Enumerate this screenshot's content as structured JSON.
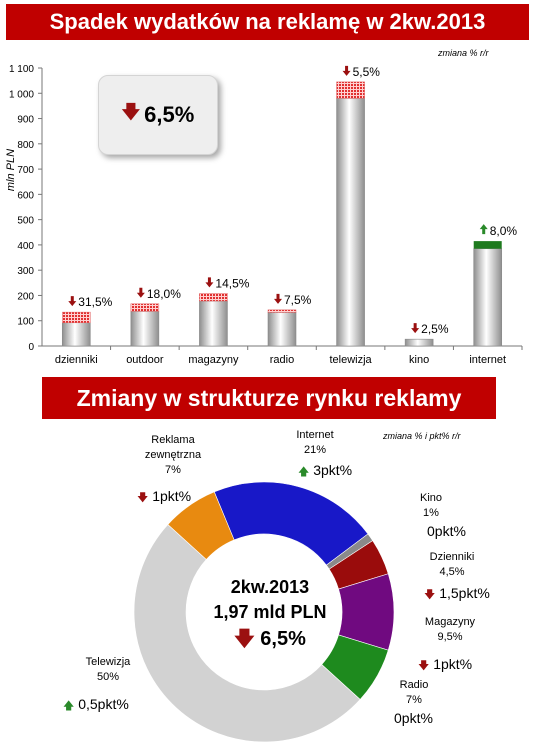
{
  "chart_data": [
    {
      "type": "bar",
      "title": "Spadek wydatków na reklamę w 2kw.2013",
      "ylabel": "mln PLN",
      "note": "zmiana % r/r",
      "ylim": [
        0,
        1100
      ],
      "yticks": [
        "0",
        "100",
        "200",
        "300",
        "400",
        "500",
        "600",
        "700",
        "800",
        "900",
        "1 000",
        "1 100"
      ],
      "grid": false,
      "categories": [
        "dzienniki",
        "outdoor",
        "magazyny",
        "radio",
        "telewizja",
        "kino",
        "internet"
      ],
      "values": [
        92,
        137,
        178,
        133,
        980,
        27,
        385
      ],
      "change_segment": [
        {
          "value": 42,
          "direction": "down"
        },
        {
          "value": 30,
          "direction": "down"
        },
        {
          "value": 30,
          "direction": "down"
        },
        {
          "value": 10,
          "direction": "down"
        },
        {
          "value": 65,
          "direction": "down"
        },
        {
          "value": 0,
          "direction": "down"
        },
        {
          "value": 30,
          "direction": "up"
        }
      ],
      "change_labels": [
        "31,5%",
        "18,0%",
        "14,5%",
        "7,5%",
        "5,5%",
        "2,5%",
        "8,0%"
      ],
      "change_directions": [
        "down",
        "down",
        "down",
        "down",
        "down",
        "down",
        "up"
      ],
      "callout": "6,5%",
      "callout_direction": "down",
      "colors": {
        "bar": "#c8c8c8",
        "decline": "#e03030",
        "growth": "#1e7a1e"
      }
    },
    {
      "type": "pie",
      "title": "Zmiany w strukturze rynku reklamy",
      "note": "zmiana % i pkt% r/r",
      "center": {
        "period": "2kw.2013",
        "total": "1,97 mld PLN",
        "change": "6,5%"
      },
      "slices": [
        {
          "name": "Internet",
          "share": 21,
          "share_label": "21%",
          "change": "3pkt%",
          "direction": "up",
          "color": "#1818c8"
        },
        {
          "name": "Kino",
          "share": 1,
          "share_label": "1%",
          "change": "0pkt%",
          "direction": "none",
          "color": "#8a8a8a"
        },
        {
          "name": "Dzienniki",
          "share": 4.5,
          "share_label": "4,5%",
          "change": "1,5pkt%",
          "direction": "down",
          "color": "#9a0c0c"
        },
        {
          "name": "Magazyny",
          "share": 9.5,
          "share_label": "9,5%",
          "change": "1pkt%",
          "direction": "down",
          "color": "#700a80"
        },
        {
          "name": "Radio",
          "share": 7,
          "share_label": "7%",
          "change": "0pkt%",
          "direction": "none",
          "color": "#1e8a1e"
        },
        {
          "name": "Telewizja",
          "share": 50,
          "share_label": "50%",
          "change": "0,5pkt%",
          "direction": "up",
          "color": "#d2d2d2"
        },
        {
          "name": "Reklama zewnętrzna",
          "share": 7,
          "share_label": "7%",
          "change": "1pkt%",
          "direction": "down",
          "color": "#e88a10"
        }
      ]
    }
  ],
  "icons": {
    "down": "arrow-down-icon",
    "up": "arrow-up-icon"
  }
}
